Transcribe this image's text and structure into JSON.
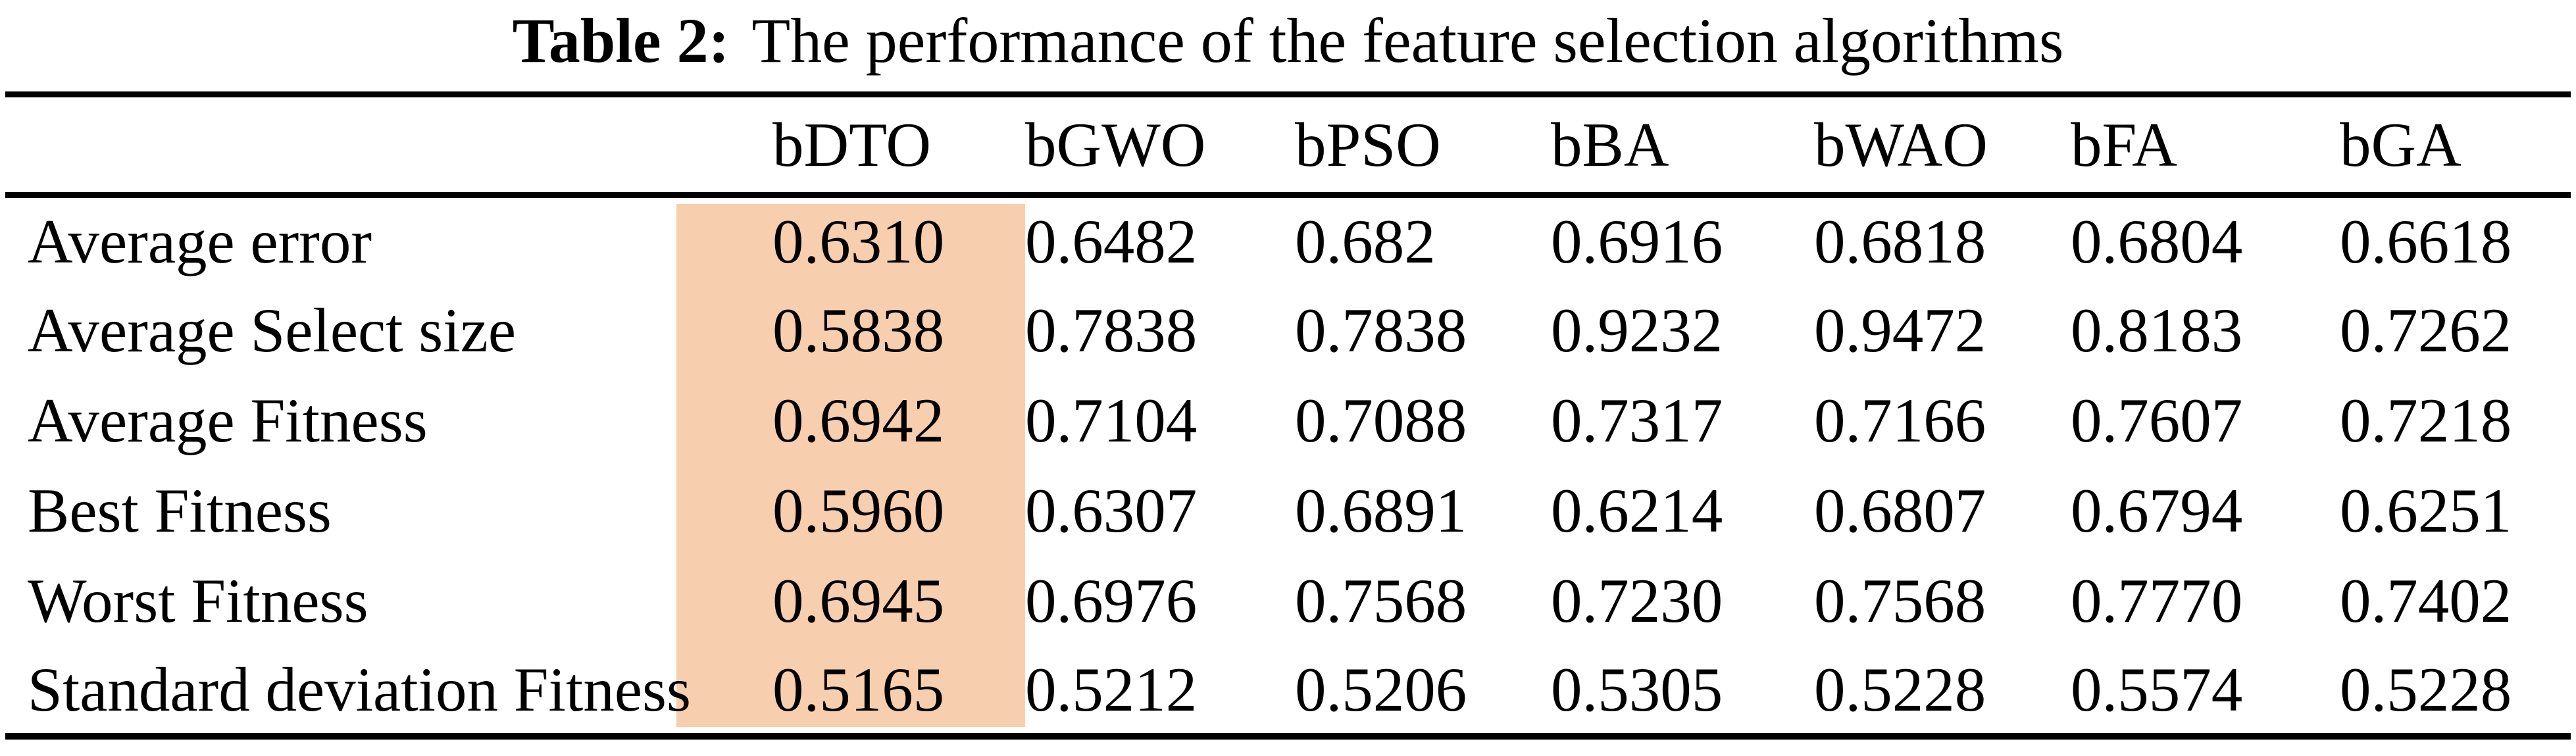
{
  "caption": {
    "label": "Table 2:",
    "text": "The performance of the feature selection algorithms"
  },
  "table": {
    "column_headers": [
      "bDTO",
      "bGWO",
      "bPSO",
      "bBA",
      "bWAO",
      "bFA",
      "bGA"
    ],
    "highlighted_column": "bDTO",
    "highlight_color": "#f8cfae",
    "rows": [
      {
        "label": "Average error",
        "values": [
          "0.6310",
          "0.6482",
          "0.682",
          "0.6916",
          "0.6818",
          "0.6804",
          "0.6618"
        ]
      },
      {
        "label": "Average Select size",
        "values": [
          "0.5838",
          "0.7838",
          "0.7838",
          "0.9232",
          "0.9472",
          "0.8183",
          "0.7262"
        ]
      },
      {
        "label": "Average Fitness",
        "values": [
          "0.6942",
          "0.7104",
          "0.7088",
          "0.7317",
          "0.7166",
          "0.7607",
          "0.7218"
        ]
      },
      {
        "label": "Best Fitness",
        "values": [
          "0.5960",
          "0.6307",
          "0.6891",
          "0.6214",
          "0.6807",
          "0.6794",
          "0.6251"
        ]
      },
      {
        "label": "Worst Fitness",
        "values": [
          "0.6945",
          "0.6976",
          "0.7568",
          "0.7230",
          "0.7568",
          "0.7770",
          "0.7402"
        ]
      },
      {
        "label": "Standard deviation Fitness",
        "values": [
          "0.5165",
          "0.5212",
          "0.5206",
          "0.5305",
          "0.5228",
          "0.5574",
          "0.5228"
        ]
      }
    ]
  }
}
